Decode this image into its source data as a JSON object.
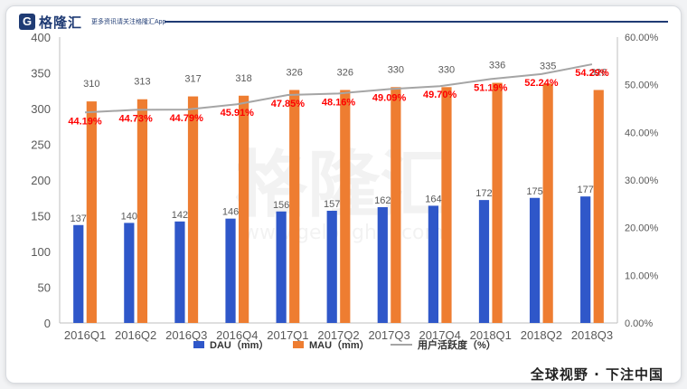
{
  "brand": {
    "logo_letter": "G",
    "name": "格隆汇",
    "tagline": "更多资讯请关注格隆汇App"
  },
  "footer": {
    "tag": "全球视野 · 下注中国"
  },
  "watermark": {
    "cn": "格隆汇",
    "url": "www.gelonghui.com"
  },
  "colors": {
    "dau": "#2f57c9",
    "mau": "#ee7d31",
    "activity": "#a5a5a5",
    "pct_label": "#ff0000",
    "axis_text": "#595959"
  },
  "chart_data": {
    "type": "bar",
    "categories": [
      "2016Q1",
      "2016Q2",
      "2016Q3",
      "2016Q4",
      "2017Q1",
      "2017Q2",
      "2017Q3",
      "2017Q4",
      "2018Q1",
      "2018Q2",
      "2018Q3"
    ],
    "series": [
      {
        "name": "DAU（mm）",
        "type": "bar",
        "axis": "left",
        "values": [
          137,
          140,
          142,
          146,
          156,
          157,
          162,
          164,
          172,
          175,
          177
        ],
        "labels": [
          "137",
          "140",
          "142",
          "146",
          "156",
          "157",
          "162",
          "164",
          "172",
          "175",
          "177"
        ]
      },
      {
        "name": "MAU（mm）",
        "type": "bar",
        "axis": "left",
        "values": [
          310,
          313,
          317,
          318,
          326,
          326,
          330,
          330,
          336,
          335,
          326
        ],
        "labels": [
          "310",
          "313",
          "317",
          "318",
          "326",
          "326",
          "330",
          "330",
          "336",
          "335",
          "326"
        ]
      },
      {
        "name": "用户活跃度（%）",
        "type": "line",
        "axis": "right",
        "values": [
          44.19,
          44.73,
          44.79,
          45.91,
          47.85,
          48.16,
          49.09,
          49.7,
          51.19,
          52.24,
          54.29
        ],
        "labels": [
          "44.19%",
          "44.73%",
          "44.79%",
          "45.91%",
          "47.85%",
          "48.16%",
          "49.09%",
          "49.70%",
          "51.19%",
          "52.24%",
          "54.29%"
        ]
      }
    ],
    "y_left": {
      "min": 0,
      "max": 400,
      "ticks": [
        "0",
        "50",
        "100",
        "150",
        "200",
        "250",
        "300",
        "350",
        "400"
      ]
    },
    "y_right": {
      "min": 0,
      "max": 60,
      "ticks": [
        "0.00%",
        "10.00%",
        "20.00%",
        "30.00%",
        "40.00%",
        "50.00%",
        "60.00%"
      ]
    },
    "grid": false,
    "legend_position": "bottom"
  }
}
